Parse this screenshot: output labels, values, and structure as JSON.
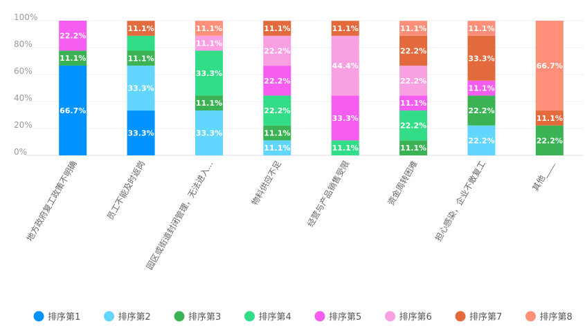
{
  "chart_data": {
    "type": "bar",
    "stacked": true,
    "percent_stacked": true,
    "title": "",
    "xlabel": "",
    "ylabel": "",
    "ylim": [
      0,
      100
    ],
    "yticks": [
      "0%",
      "20%",
      "40%",
      "60%",
      "80%",
      "100%"
    ],
    "grid": true,
    "legend_position": "bottom",
    "categories": [
      "地方政府复工政策不明确",
      "员工不能及时返岗",
      "园区或街道封闭管理，无法进入...",
      "物料供应不足",
      "经营与产品销售受限",
      "资金周转困难",
      "担心感染，企业不敢复工",
      "其他____"
    ],
    "series": [
      {
        "name": "排序第1",
        "color": "#0092ff",
        "values": [
          66.7,
          33.3,
          0,
          0,
          0,
          0,
          0,
          0
        ],
        "labels": [
          "66.7%",
          "33.3%",
          "",
          "",
          "",
          "",
          "",
          ""
        ]
      },
      {
        "name": "排序第2",
        "color": "#63d6ff",
        "values": [
          0,
          33.3,
          33.3,
          11.1,
          0,
          0,
          22.2,
          0
        ],
        "labels": [
          "",
          "33.3%",
          "33.3%",
          "11.1%",
          "",
          "",
          "22.2%",
          ""
        ]
      },
      {
        "name": "排序第3",
        "color": "#3bb354",
        "values": [
          11.1,
          11.1,
          11.1,
          11.1,
          0,
          11.1,
          22.2,
          22.2
        ],
        "labels": [
          "11.1%",
          "11.1%",
          "11.1%",
          "11.1%",
          "",
          "11.1%",
          "22.2%",
          "22.2%"
        ]
      },
      {
        "name": "排序第4",
        "color": "#33dd88",
        "values": [
          0,
          11.1,
          33.3,
          22.2,
          11.1,
          22.2,
          0,
          0
        ],
        "labels": [
          "",
          "",
          "33.3%",
          "22.2%",
          "11.1%",
          "22.2%",
          "",
          ""
        ]
      },
      {
        "name": "排序第5",
        "color": "#f55cf0",
        "values": [
          22.2,
          0,
          0,
          22.2,
          33.3,
          11.1,
          11.1,
          0
        ],
        "labels": [
          "22.2%",
          "",
          "",
          "22.2%",
          "33.3%",
          "11.1%",
          "11.1%",
          ""
        ]
      },
      {
        "name": "排序第6",
        "color": "#f9a0e3",
        "values": [
          0,
          0,
          11.1,
          22.2,
          44.4,
          22.2,
          0,
          0
        ],
        "labels": [
          "",
          "",
          "11.1%",
          "22.2%",
          "44.4%",
          "22.2%",
          "",
          ""
        ]
      },
      {
        "name": "排序第7",
        "color": "#e26a3c",
        "values": [
          0,
          11.1,
          0,
          11.1,
          11.1,
          22.2,
          33.3,
          11.1
        ],
        "labels": [
          "",
          "11.1%",
          "",
          "11.1%",
          "11.1%",
          "22.2%",
          "33.3%",
          "11.1%"
        ]
      },
      {
        "name": "排序第8",
        "color": "#ff8f79",
        "values": [
          0,
          0,
          11.1,
          0,
          0,
          11.1,
          11.1,
          66.7
        ],
        "labels": [
          "",
          "",
          "11.1%",
          "",
          "",
          "11.1%",
          "11.1%",
          "66.7%"
        ]
      }
    ]
  }
}
